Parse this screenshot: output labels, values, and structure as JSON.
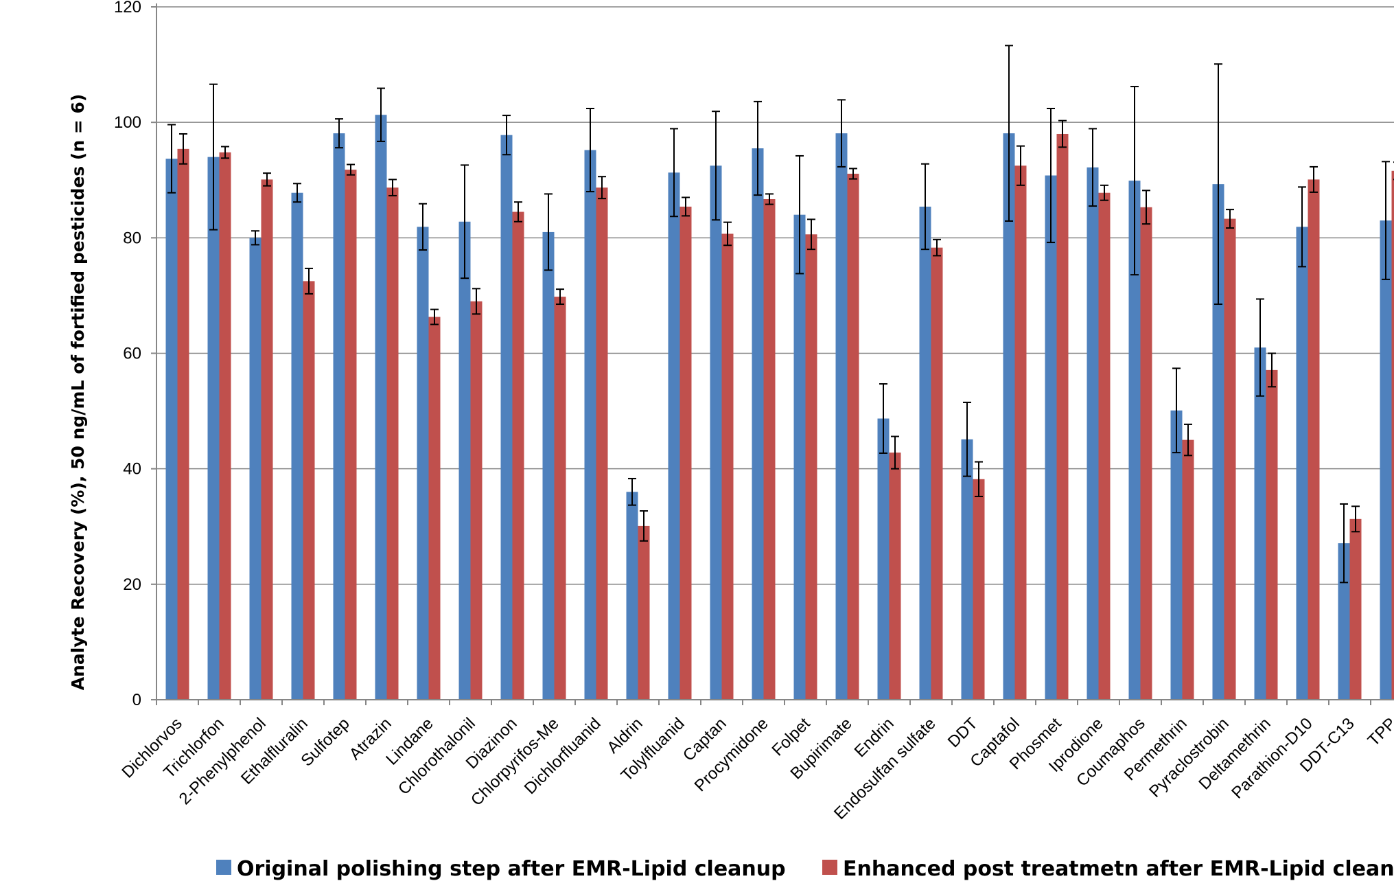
{
  "chart_data": {
    "type": "bar",
    "ylabel": "Analyte Recovery (%),  50 ng/mL of fortified pesticides (n = 6)",
    "xlabel": "",
    "ylim": [
      0,
      120
    ],
    "yticks": [
      0,
      20,
      40,
      60,
      80,
      100,
      120
    ],
    "grid": true,
    "legend_position": "bottom",
    "categories": [
      "Dichlorvos",
      "Trichlorfon",
      "2-Phenylphenol",
      "Ethalfluralin",
      "Sulfotep",
      "Atrazin",
      "Lindane",
      "Chlorothalonil",
      "Diazinon",
      "Chlorpyrifos-Me",
      "Dichlorfluanid",
      "Aldrin",
      "Tolylfluanid",
      "Captan",
      "Procymidone",
      "Folpet",
      "Bupirimate",
      "Endrin",
      "Endosulfan sulfate",
      "DDT",
      "Captafol",
      "Phosmet",
      "Iprodione",
      "Coumaphos",
      "Permethrin",
      "Pyraclostrobin",
      "Deltamethrin",
      "Parathion-D10",
      "DDT-C13",
      "TPP"
    ],
    "series": [
      {
        "name": "Original polishing step after EMR-Lipid cleanup",
        "color": "#4f81bd",
        "values": [
          93.7,
          94.0,
          80.0,
          87.8,
          98.1,
          101.3,
          81.9,
          82.8,
          97.8,
          81.0,
          95.2,
          36.0,
          91.3,
          92.5,
          95.5,
          84.0,
          98.1,
          48.7,
          85.4,
          45.1,
          98.1,
          90.8,
          92.2,
          89.9,
          50.1,
          89.3,
          61.0,
          81.9,
          27.1,
          83.0
        ],
        "errors": [
          5.9,
          12.6,
          1.2,
          1.6,
          2.5,
          4.6,
          4.0,
          9.8,
          3.4,
          6.6,
          7.2,
          2.3,
          7.6,
          9.4,
          8.1,
          10.2,
          5.8,
          6.0,
          7.4,
          6.4,
          15.2,
          11.6,
          6.7,
          16.3,
          7.3,
          20.8,
          8.4,
          6.9,
          6.8,
          10.2
        ]
      },
      {
        "name": "Enhanced post treatmetn after EMR-Lipid cleanup",
        "color": "#c0504d",
        "values": [
          95.4,
          94.8,
          90.1,
          72.5,
          91.8,
          88.7,
          66.3,
          69.0,
          84.5,
          69.8,
          88.7,
          30.1,
          85.4,
          80.7,
          86.7,
          80.6,
          91.1,
          42.8,
          78.3,
          38.2,
          92.5,
          98.0,
          87.8,
          85.3,
          45.0,
          83.3,
          57.1,
          90.1,
          31.3,
          91.6
        ],
        "errors": [
          2.6,
          1.0,
          1.1,
          2.2,
          0.9,
          1.4,
          1.3,
          2.2,
          1.7,
          1.3,
          1.9,
          2.6,
          1.6,
          2.0,
          0.9,
          2.6,
          0.9,
          2.8,
          1.4,
          3.0,
          3.4,
          2.3,
          1.3,
          2.9,
          2.7,
          1.6,
          2.9,
          2.2,
          2.2,
          1.5
        ]
      }
    ]
  }
}
